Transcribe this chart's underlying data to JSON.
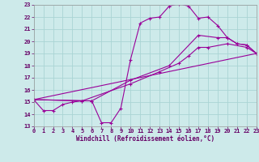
{
  "xlabel": "Windchill (Refroidissement éolien,°C)",
  "bg_color": "#cdeaea",
  "grid_color": "#aad4d4",
  "line_color": "#990099",
  "xmin": 0,
  "xmax": 23,
  "ymin": 13,
  "ymax": 23,
  "series": [
    {
      "x": [
        0,
        1,
        2,
        3,
        4,
        5,
        6,
        7,
        8,
        9,
        10,
        11,
        12,
        13,
        14,
        15,
        16,
        17,
        18,
        19,
        20,
        21,
        22,
        23
      ],
      "y": [
        15.2,
        14.3,
        14.3,
        14.8,
        15.0,
        15.1,
        15.1,
        13.3,
        13.3,
        14.5,
        18.5,
        21.5,
        21.9,
        22.0,
        22.9,
        23.1,
        22.9,
        21.9,
        22.0,
        21.3,
        20.3,
        19.8,
        19.7,
        19.0
      ]
    },
    {
      "x": [
        0,
        6,
        10,
        14,
        17,
        19,
        20,
        21,
        22,
        23
      ],
      "y": [
        15.2,
        15.1,
        16.8,
        18.0,
        20.5,
        20.3,
        20.3,
        19.8,
        19.7,
        19.0
      ]
    },
    {
      "x": [
        0,
        23
      ],
      "y": [
        15.2,
        19.0
      ]
    },
    {
      "x": [
        0,
        5,
        10,
        13,
        15,
        16,
        17,
        18,
        20,
        22,
        23
      ],
      "y": [
        15.2,
        15.1,
        16.5,
        17.5,
        18.2,
        18.8,
        19.5,
        19.5,
        19.8,
        19.5,
        19.0
      ]
    }
  ]
}
